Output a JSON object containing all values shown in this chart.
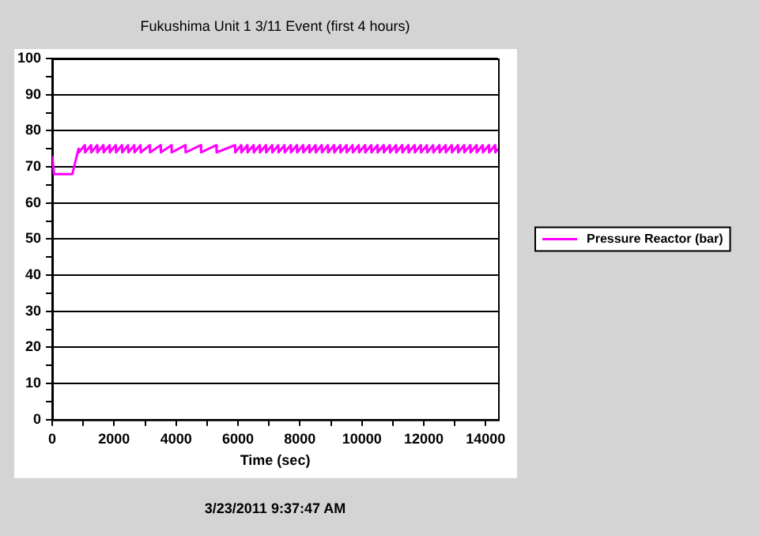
{
  "chart_data": {
    "type": "line",
    "title": "Fukushima Unit 1 3/11 Event (first 4 hours)",
    "xlabel": "Time (sec)",
    "annotations": [
      "3/23/2011 9:37:47 AM"
    ],
    "xlim": [
      0,
      14400
    ],
    "xticks": [
      0,
      {
        "value": 1000,
        "label": null
      },
      2000,
      {
        "value": 3000,
        "label": null
      },
      4000,
      {
        "value": 5000,
        "label": null
      },
      6000,
      {
        "value": 7000,
        "label": null
      },
      8000,
      {
        "value": 9000,
        "label": null
      },
      10000,
      {
        "value": 11000,
        "label": null
      },
      12000,
      {
        "value": 13000,
        "label": null
      },
      14000
    ],
    "ylim": [
      0,
      100
    ],
    "yticks": [
      0,
      {
        "value": 5,
        "label": null
      },
      10,
      {
        "value": 15,
        "label": null
      },
      20,
      {
        "value": 25,
        "label": null
      },
      30,
      {
        "value": 35,
        "label": null
      },
      40,
      {
        "value": 45,
        "label": null
      },
      50,
      {
        "value": 55,
        "label": null
      },
      60,
      {
        "value": 65,
        "label": null
      },
      70,
      {
        "value": 75,
        "label": null
      },
      80,
      {
        "value": 85,
        "label": null
      },
      90,
      {
        "value": 95,
        "label": null
      },
      100
    ],
    "grid": "y",
    "legend": "right",
    "line_style": "solid",
    "series": [
      {
        "name": "Pressure Reactor (bar)",
        "color": "#ff00ff",
        "x": [
          0,
          60,
          650,
          850,
          860,
          1050,
          1060,
          1250,
          1260,
          1450,
          1460,
          1650,
          1660,
          1850,
          1860,
          2050,
          2060,
          2250,
          2260,
          2450,
          2460,
          2650,
          2660,
          2850,
          2860,
          3150,
          3160,
          3500,
          3510,
          3850,
          3860,
          4300,
          4310,
          4800,
          4810,
          5300,
          5310,
          5900,
          5910,
          6100,
          6110,
          6300,
          6310,
          6500,
          6510,
          6700,
          6710,
          6900,
          6910,
          7100,
          7110,
          7300,
          7310,
          7500,
          7510,
          7700,
          7710,
          7900,
          7910,
          8100,
          8110,
          8300,
          8310,
          8500,
          8510,
          8700,
          8710,
          8900,
          8910,
          9100,
          9110,
          9300,
          9310,
          9500,
          9510,
          9700,
          9710,
          9900,
          9910,
          10100,
          10110,
          10300,
          10310,
          10500,
          10510,
          10700,
          10710,
          10900,
          10910,
          11100,
          11110,
          11300,
          11310,
          11500,
          11510,
          11700,
          11710,
          11900,
          11910,
          12100,
          12110,
          12300,
          12310,
          12500,
          12510,
          12700,
          12710,
          12900,
          12910,
          13100,
          13110,
          13300,
          13310,
          13500,
          13510,
          13700,
          13710,
          13900,
          13910,
          14100,
          14110,
          14300,
          14310,
          14400
        ],
        "values": [
          73,
          68,
          68,
          75,
          74,
          76,
          74,
          76,
          74,
          76,
          74,
          76,
          74,
          76,
          74,
          76,
          74,
          76,
          74,
          76,
          74,
          76,
          74,
          76,
          74,
          76,
          74,
          76,
          74,
          76,
          74,
          76,
          74,
          76,
          74,
          76,
          74,
          76,
          74,
          76,
          74,
          76,
          74,
          76,
          74,
          76,
          74,
          76,
          74,
          76,
          74,
          76,
          74,
          76,
          74,
          76,
          74,
          76,
          74,
          76,
          74,
          76,
          74,
          76,
          74,
          76,
          74,
          76,
          74,
          76,
          74,
          76,
          74,
          76,
          74,
          76,
          74,
          76,
          74,
          76,
          74,
          76,
          74,
          76,
          74,
          76,
          74,
          76,
          74,
          76,
          74,
          76,
          74,
          76,
          74,
          76,
          74,
          76,
          74,
          76,
          74,
          76,
          74,
          76,
          74,
          76,
          74,
          76,
          74,
          76,
          74,
          76,
          74,
          76,
          74,
          76,
          74,
          76,
          74,
          76,
          74,
          76,
          74,
          75
        ]
      }
    ]
  }
}
